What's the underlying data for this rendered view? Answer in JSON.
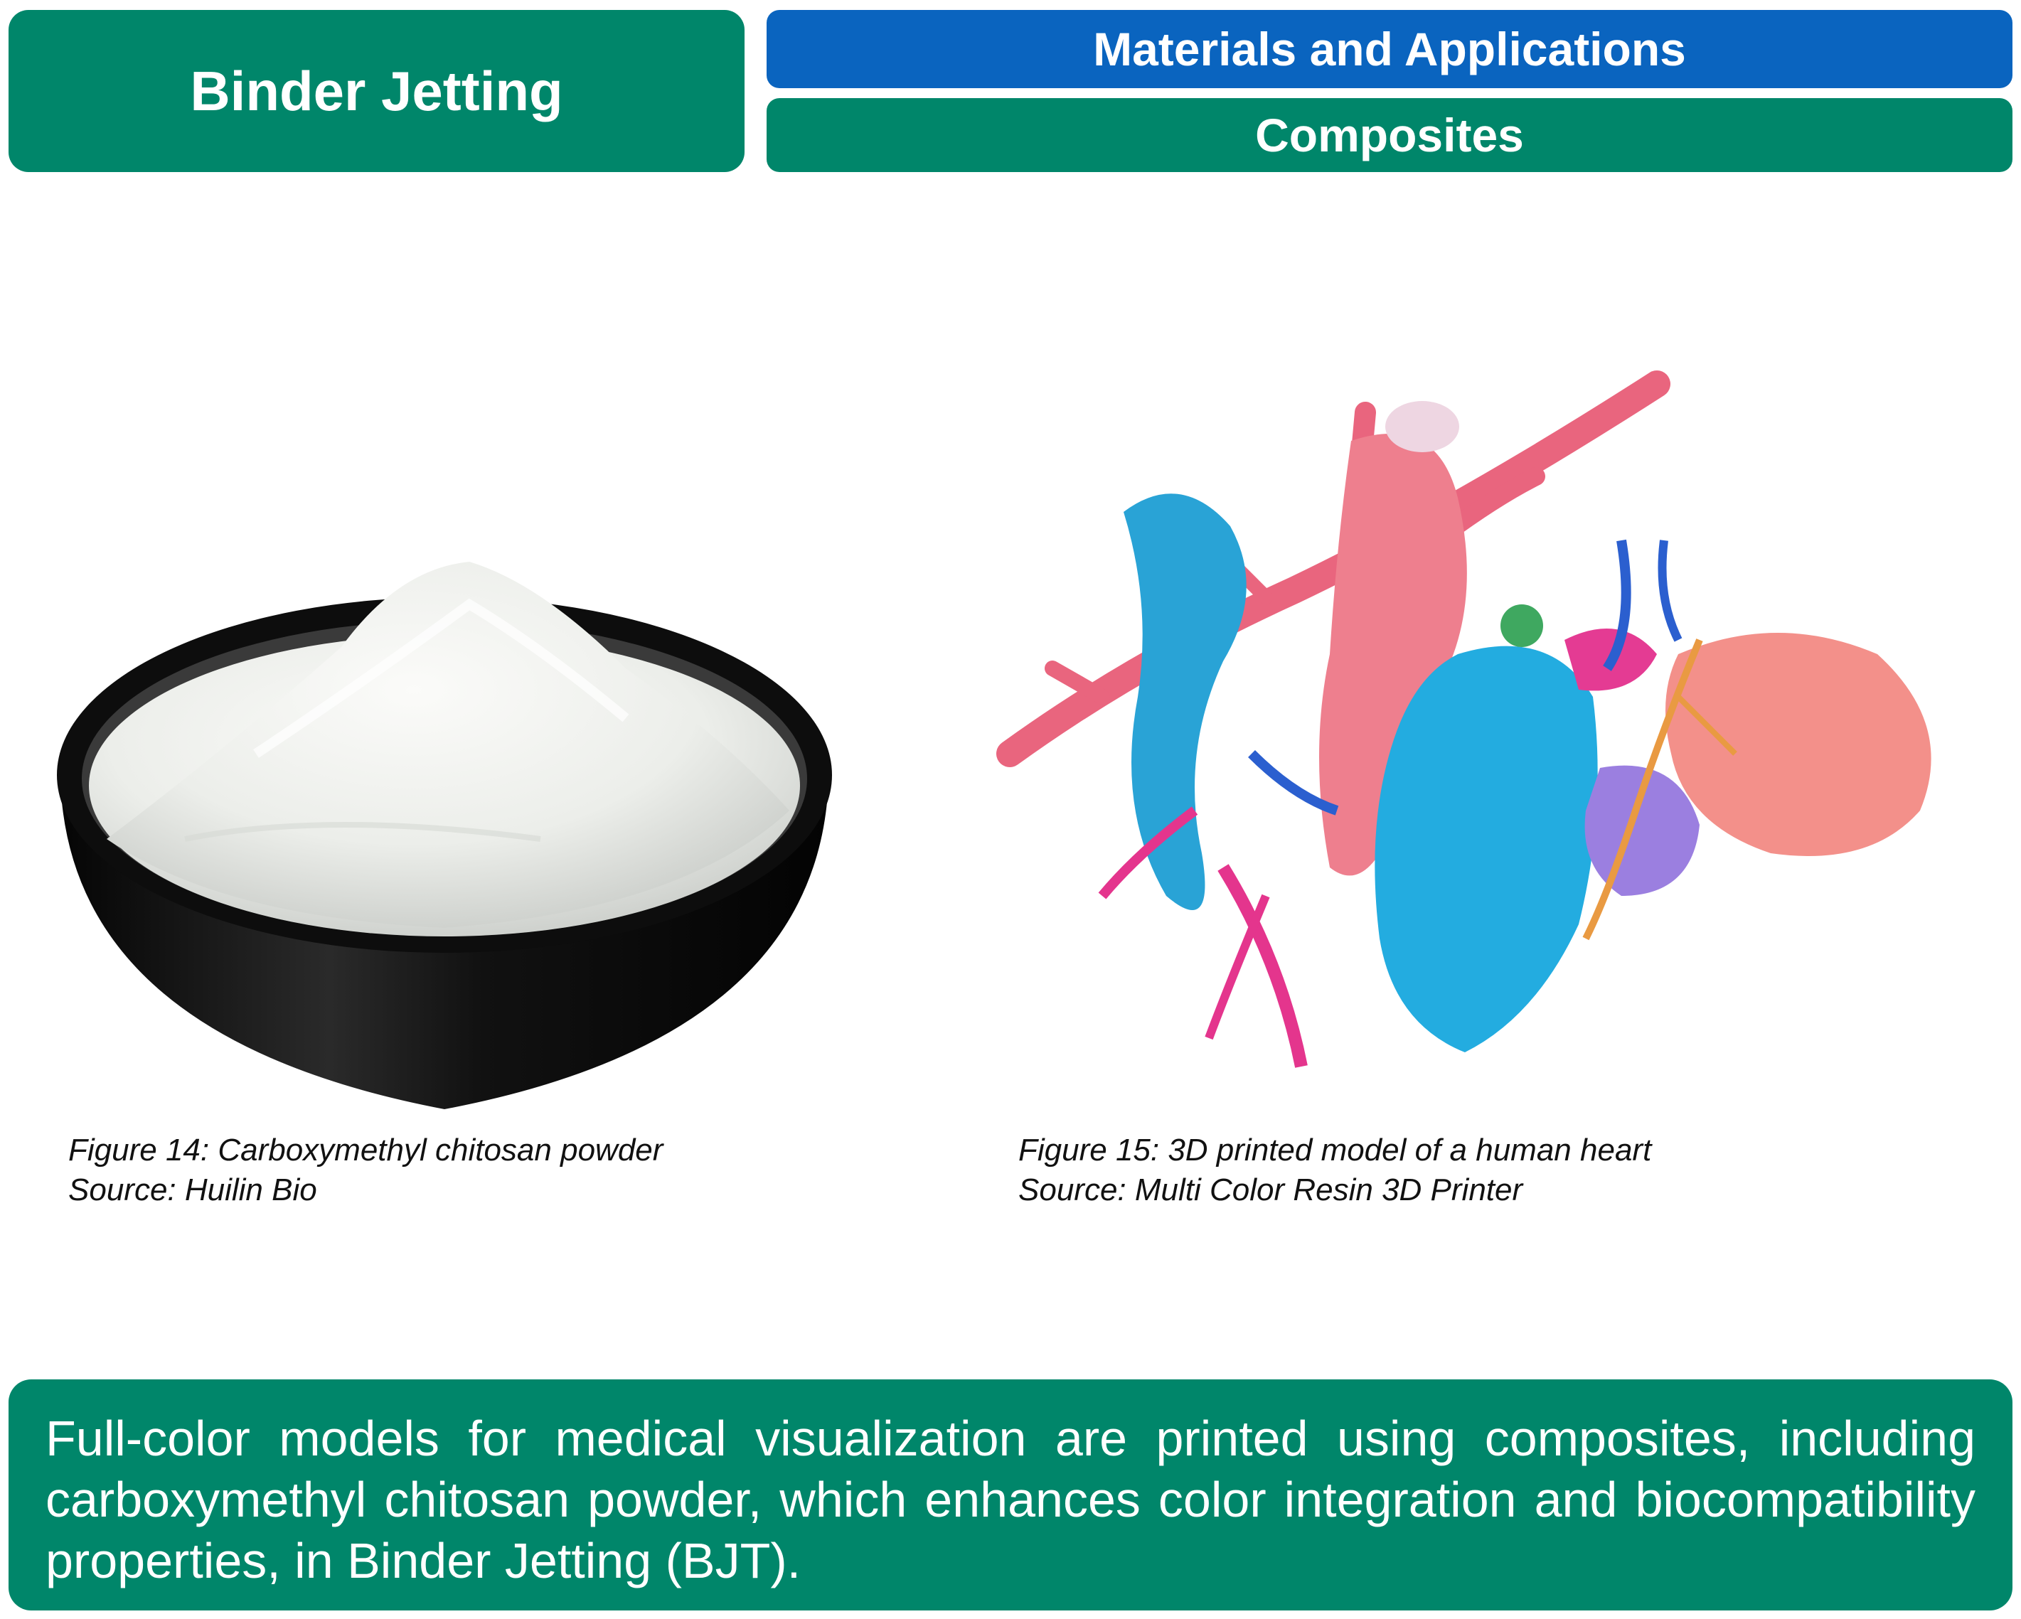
{
  "header": {
    "title": "Binder Jetting",
    "section": "Materials and Applications",
    "subsection": "Composites"
  },
  "colors": {
    "green": "#00866a",
    "blue": "#0a64bf"
  },
  "figures": [
    {
      "caption": "Figure 14: Carboxymethyl chitosan powder",
      "source": "Source: Huilin Bio"
    },
    {
      "caption": "Figure 15: 3D printed model of a human heart",
      "source": "Source: Multi Color Resin 3D Printer"
    }
  ],
  "summary": "Full-color models for medical visualization are printed using composites, including carboxymethyl chitosan powder, which enhances color integration and biocompatibility properties, in Binder Jetting (BJT)."
}
